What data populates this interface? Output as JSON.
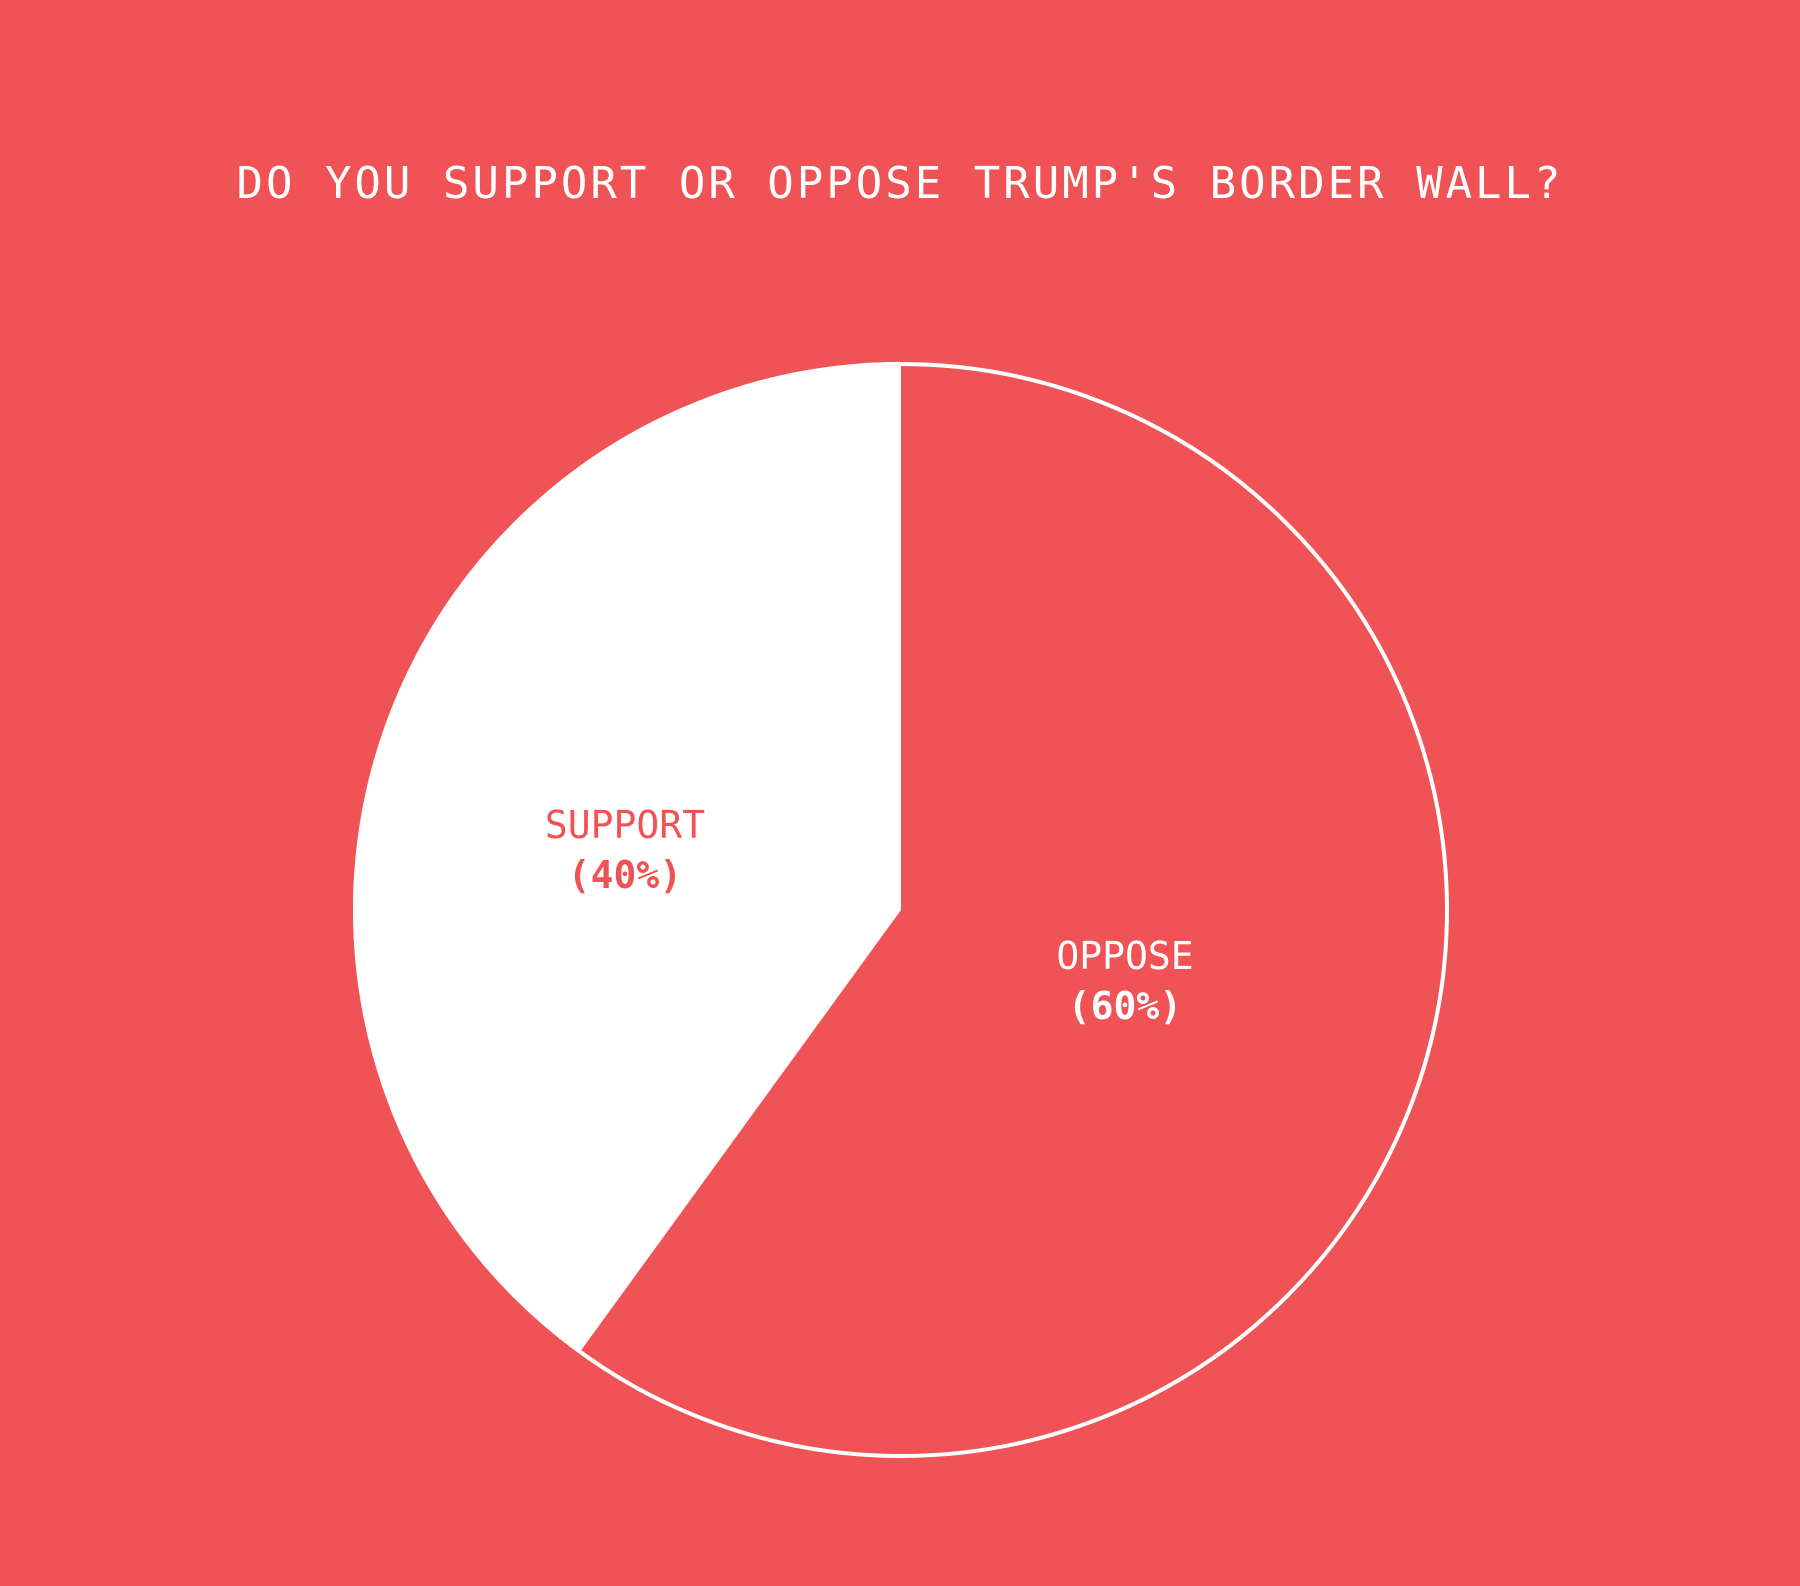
{
  "chart_data": {
    "type": "pie",
    "title": "DO YOU SUPPORT OR OPPOSE TRUMP'S BORDER WALL?",
    "categories": [
      "Support",
      "Oppose"
    ],
    "values": [
      40,
      60
    ],
    "unit": "%",
    "labels": [
      {
        "name": "SUPPORT",
        "pct": "(40%)"
      },
      {
        "name": "OPPOSE",
        "pct": "(60%)"
      }
    ],
    "colors": {
      "background": "#ef5355",
      "support": "#ffffff",
      "oppose": "#ef5355",
      "outline": "#ffffff"
    },
    "start_angle": "12 o'clock",
    "legend": "none (direct labels)"
  }
}
